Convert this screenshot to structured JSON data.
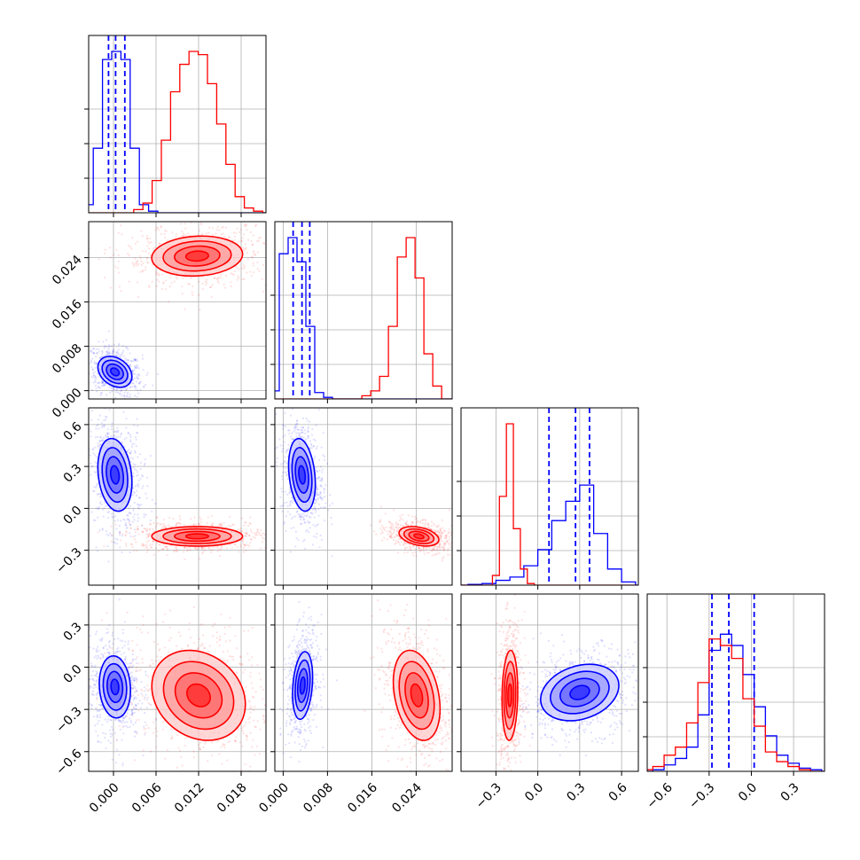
{
  "chart_data": {
    "type": "corner",
    "colors": {
      "a": "#0000ff",
      "b": "#ff0000",
      "grid": "#b0b0b0"
    },
    "parameters": [
      {
        "range": [
          -0.0035,
          0.0215
        ],
        "ticks": [
          0.0,
          0.006,
          0.012,
          0.018
        ],
        "tick_labels": [
          "0.000",
          "0.006",
          "0.012",
          "0.018"
        ]
      },
      {
        "range": [
          -0.0015,
          0.0305
        ],
        "ticks": [
          0.0,
          0.008,
          0.016,
          0.024
        ],
        "tick_labels": [
          "0.000",
          "0.008",
          "0.016",
          "0.024"
        ]
      },
      {
        "range": [
          -0.55,
          0.72
        ],
        "ticks": [
          -0.3,
          0.0,
          0.3,
          0.6
        ],
        "tick_labels": [
          "−0.3",
          "0.0",
          "0.3",
          "0.6"
        ]
      },
      {
        "range": [
          -0.74,
          0.52
        ],
        "ticks": [
          -0.6,
          -0.3,
          0.0,
          0.3
        ],
        "tick_labels": [
          "−0.6",
          "−0.3",
          "0.0",
          "0.3"
        ]
      }
    ],
    "series": [
      {
        "key": "a",
        "marginals": [
          {
            "x": [
              -0.0035,
              -0.0022,
              -0.0009,
              0.0004,
              0.0017,
              0.003,
              0.0043,
              0.0056,
              0.0069,
              0.0082
            ],
            "density": [
              0.05,
              0.4,
              0.95,
              1.0,
              0.95,
              0.4,
              0.05,
              0.01,
              0,
              0
            ],
            "quantiles": [
              -0.0007,
              0.0003,
              0.0016
            ]
          },
          {
            "x": [
              -0.0015,
              0.0001,
              0.0017,
              0.0033,
              0.0049,
              0.0065,
              0.0081,
              0.0097
            ],
            "density": [
              0.05,
              0.9,
              1.0,
              0.85,
              0.45,
              0.04,
              0.01,
              0
            ],
            "quantiles": [
              0.0018,
              0.0034,
              0.0048
            ]
          },
          {
            "x": [
              -0.55,
              -0.45,
              -0.35,
              -0.25,
              -0.15,
              -0.05,
              0.05,
              0.15,
              0.25,
              0.35,
              0.45,
              0.55,
              0.65
            ],
            "density": [
              0,
              0.005,
              0.01,
              0.03,
              0.05,
              0.12,
              0.22,
              0.4,
              0.52,
              0.62,
              0.32,
              0.1,
              0.02
            ],
            "quantiles": [
              0.08,
              0.27,
              0.37
            ]
          },
          {
            "x": [
              -0.74,
              -0.66,
              -0.58,
              -0.5,
              -0.42,
              -0.34,
              -0.26,
              -0.18,
              -0.1,
              -0.02,
              0.06,
              0.14,
              0.22,
              0.3,
              0.38,
              0.46
            ],
            "density": [
              0,
              0.01,
              0.04,
              0.08,
              0.15,
              0.35,
              0.75,
              0.85,
              0.78,
              0.6,
              0.4,
              0.22,
              0.1,
              0.05,
              0.02,
              0.01
            ],
            "quantiles": [
              -0.28,
              -0.16,
              0.02
            ]
          }
        ],
        "blobs": [
          {
            "i": 1,
            "j": 0,
            "cx": 0.0002,
            "cy": 0.0034,
            "sx": 0.0012,
            "sy": 0.0014,
            "rho": -0.3
          },
          {
            "i": 2,
            "j": 0,
            "cx": 0.0002,
            "cy": 0.24,
            "sx": 0.0012,
            "sy": 0.13,
            "rho": -0.2
          },
          {
            "i": 2,
            "j": 1,
            "cx": 0.0034,
            "cy": 0.24,
            "sx": 0.0012,
            "sy": 0.13,
            "rho": -0.25
          },
          {
            "i": 3,
            "j": 0,
            "cx": 0.0002,
            "cy": -0.14,
            "sx": 0.0011,
            "sy": 0.11,
            "rho": -0.1
          },
          {
            "i": 3,
            "j": 1,
            "cx": 0.0035,
            "cy": -0.13,
            "sx": 0.0009,
            "sy": 0.12,
            "rho": 0.25
          },
          {
            "i": 3,
            "j": 2,
            "cx": 0.3,
            "cy": -0.18,
            "sx": 0.14,
            "sy": 0.1,
            "rho": 0.25
          }
        ]
      },
      {
        "key": "b",
        "marginals": [
          {
            "x": [
              0.0035,
              0.0048,
              0.0061,
              0.0074,
              0.0087,
              0.01,
              0.0113,
              0.0126,
              0.0139,
              0.0152,
              0.0165,
              0.0178,
              0.0191,
              0.0204
            ],
            "density": [
              0.02,
              0.06,
              0.2,
              0.45,
              0.75,
              0.92,
              1.0,
              0.98,
              0.8,
              0.55,
              0.3,
              0.1,
              0.03,
              0.01
            ],
            "quantiles": []
          },
          {
            "x": [
              0.015,
              0.0166,
              0.0182,
              0.0198,
              0.0214,
              0.023,
              0.0246,
              0.0262,
              0.0278
            ],
            "density": [
              0.02,
              0.05,
              0.14,
              0.45,
              0.88,
              1.0,
              0.75,
              0.28,
              0.08
            ],
            "quantiles": []
          },
          {
            "x": [
              -0.3,
              -0.25,
              -0.2,
              -0.15,
              -0.1,
              -0.05
            ],
            "density": [
              0.06,
              0.55,
              1.0,
              0.35,
              0.1,
              0.01
            ],
            "quantiles": []
          },
          {
            "x": [
              -0.74,
              -0.66,
              -0.58,
              -0.5,
              -0.42,
              -0.34,
              -0.26,
              -0.18,
              -0.1,
              -0.02,
              0.06,
              0.14,
              0.22,
              0.3,
              0.38,
              0.46
            ],
            "density": [
              0.01,
              0.03,
              0.1,
              0.15,
              0.3,
              0.55,
              0.82,
              0.78,
              0.7,
              0.45,
              0.28,
              0.12,
              0.06,
              0.03,
              0.01,
              0
            ],
            "quantiles": []
          }
        ],
        "blobs": [
          {
            "i": 1,
            "j": 0,
            "cx": 0.0118,
            "cy": 0.0243,
            "sx": 0.0032,
            "sy": 0.0018,
            "rho": 0.1
          },
          {
            "i": 2,
            "j": 0,
            "cx": 0.0118,
            "cy": -0.2,
            "sx": 0.0032,
            "sy": 0.035,
            "rho": 0.0
          },
          {
            "i": 2,
            "j": 1,
            "cx": 0.0245,
            "cy": -0.2,
            "sx": 0.0018,
            "sy": 0.035,
            "rho": -0.35
          },
          {
            "i": 3,
            "j": 0,
            "cx": 0.012,
            "cy": -0.2,
            "sx": 0.0033,
            "sy": 0.16,
            "rho": -0.2
          },
          {
            "i": 3,
            "j": 1,
            "cx": 0.0241,
            "cy": -0.2,
            "sx": 0.0021,
            "sy": 0.16,
            "rho": -0.3
          },
          {
            "i": 3,
            "j": 2,
            "cx": -0.2,
            "cy": -0.2,
            "sx": 0.028,
            "sy": 0.16,
            "rho": 0.1
          }
        ]
      }
    ]
  }
}
